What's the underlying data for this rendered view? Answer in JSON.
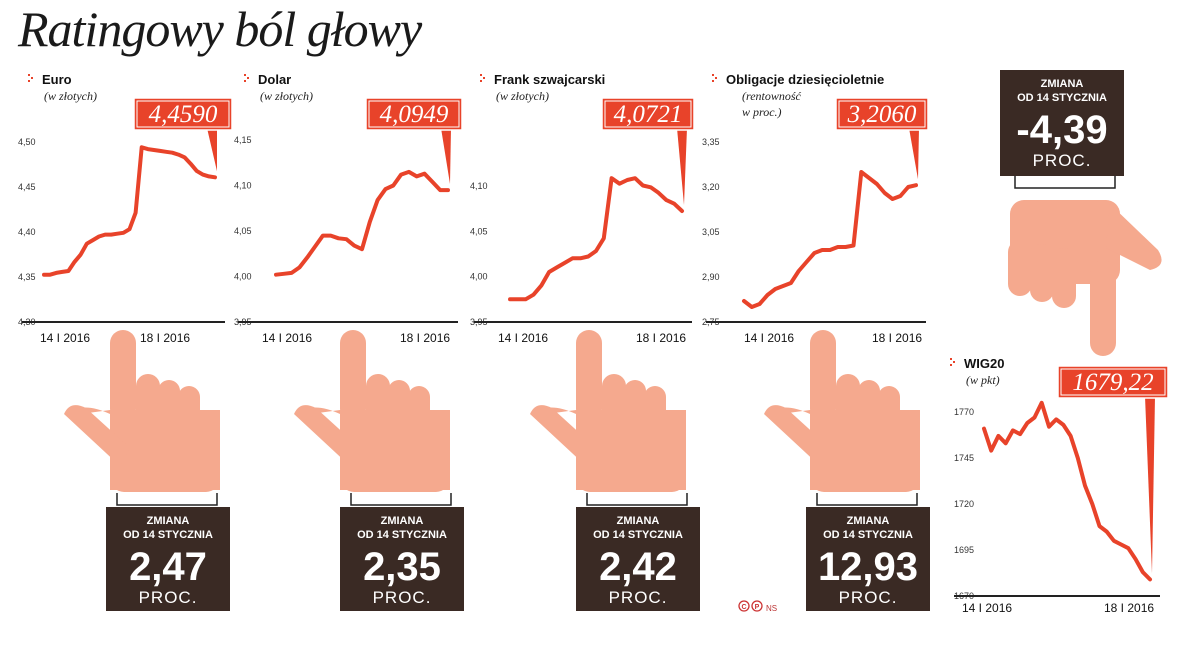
{
  "title": "Ratingowy ból głowy",
  "credit": "NS",
  "colors": {
    "line": "#e8432a",
    "box": "#3a2a24",
    "hand": "#f5a98e",
    "ring": "#e8432a"
  },
  "chart_data": [
    {
      "type": "line",
      "title": "Euro",
      "subtitle": [
        "(w złotych)"
      ],
      "callout": "4,4590",
      "yticks": [
        "4,50",
        "4,45",
        "4,40",
        "4,35",
        "4,30"
      ],
      "ylim": [
        4.3,
        4.5
      ],
      "xlabels": [
        "14 I 2016",
        "18 I 2016"
      ],
      "y": [
        4.352,
        4.352,
        4.354,
        4.355,
        4.356,
        4.366,
        4.374,
        4.386,
        4.39,
        4.394,
        4.396,
        4.396,
        4.397,
        4.398,
        4.402,
        4.42,
        4.492,
        4.49,
        4.489,
        4.488,
        4.487,
        4.486,
        4.484,
        4.481,
        4.474,
        4.466,
        4.462,
        4.46,
        4.459
      ],
      "change": {
        "label1": "ZMIANA",
        "label2": "OD 14 STYCZNIA",
        "value": "2,47",
        "unit": "PROC."
      }
    },
    {
      "type": "line",
      "title": "Dolar",
      "subtitle": [
        "(w złotych)"
      ],
      "callout": "4,0949",
      "yticks": [
        "4,15",
        "4,10",
        "4,05",
        "4,00",
        "3,95"
      ],
      "ylim": [
        3.95,
        4.15
      ],
      "xlabels": [
        "14 I 2016",
        "18 I 2016"
      ],
      "y": [
        4.002,
        4.003,
        4.004,
        4.01,
        4.021,
        4.033,
        4.045,
        4.045,
        4.042,
        4.041,
        4.034,
        4.03,
        4.06,
        4.084,
        4.096,
        4.1,
        4.112,
        4.115,
        4.11,
        4.113,
        4.104,
        4.095,
        4.095
      ],
      "change": {
        "label1": "ZMIANA",
        "label2": "OD 14 STYCZNIA",
        "value": "2,35",
        "unit": "PROC."
      }
    },
    {
      "type": "line",
      "title": "Frank szwajcarski",
      "subtitle": [
        "(w złotych)"
      ],
      "callout": "4,0721",
      "yticks": [
        "4,10",
        "4,05",
        "4,00",
        "3,95"
      ],
      "ylim": [
        3.95,
        4.15
      ],
      "xlabels": [
        "14 I 2016",
        "18 I 2016"
      ],
      "y": [
        3.975,
        3.975,
        3.975,
        3.98,
        3.99,
        4.005,
        4.01,
        4.015,
        4.02,
        4.02,
        4.022,
        4.028,
        4.042,
        4.108,
        4.102,
        4.106,
        4.108,
        4.1,
        4.098,
        4.092,
        4.084,
        4.08,
        4.072
      ],
      "change": {
        "label1": "ZMIANA",
        "label2": "OD 14 STYCZNIA",
        "value": "2,42",
        "unit": "PROC."
      }
    },
    {
      "type": "line",
      "title": "Obligacje dziesięcioletnie",
      "subtitle": [
        "(rentowność",
        "w proc.)"
      ],
      "callout": "3,2060",
      "yticks": [
        "3,35",
        "3,20",
        "3,05",
        "2,90",
        "2,75"
      ],
      "ylim": [
        2.75,
        3.35
      ],
      "xlabels": [
        "14 I 2016",
        "18 I 2016"
      ],
      "y": [
        2.82,
        2.8,
        2.81,
        2.84,
        2.86,
        2.87,
        2.88,
        2.92,
        2.95,
        2.98,
        2.99,
        2.99,
        3.0,
        3.0,
        3.005,
        3.25,
        3.23,
        3.21,
        3.18,
        3.16,
        3.17,
        3.2,
        3.206
      ],
      "change": {
        "label1": "ZMIANA",
        "label2": "OD 14 STYCZNIA",
        "value": "12,93",
        "unit": "PROC."
      }
    },
    {
      "type": "line",
      "title": "WIG20",
      "subtitle": [
        "(w pkt)"
      ],
      "callout": "1679,22",
      "yticks": [
        "1770",
        "1745",
        "1720",
        "1695",
        "1670"
      ],
      "ylim": [
        1670,
        1770
      ],
      "xlabels": [
        "14 I 2016",
        "18 I 2016"
      ],
      "y": [
        1761,
        1749,
        1757,
        1753,
        1760,
        1758,
        1764,
        1767,
        1775,
        1762,
        1766,
        1763,
        1757,
        1745,
        1730,
        1720,
        1708,
        1705,
        1700,
        1698,
        1696,
        1690,
        1683,
        1679
      ],
      "change": {
        "label1": "ZMIANA",
        "label2": "OD 14 STYCZNIA",
        "value": "-4,39",
        "unit": "PROC."
      }
    }
  ]
}
